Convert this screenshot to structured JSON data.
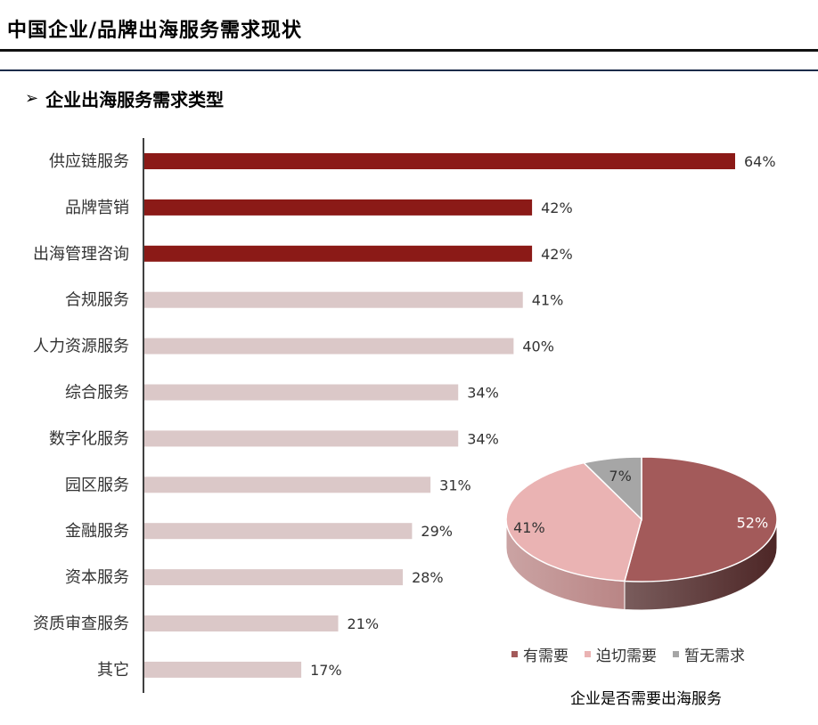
{
  "header": {
    "title": "中国企业/品牌出海服务需求现状",
    "section_arrow": "➢",
    "section_title": "企业出海服务需求类型"
  },
  "colors": {
    "bar_highlight": "#8b1a17",
    "bar_normal": "#dbc8c8",
    "pie_need": "#a35a5a",
    "pie_urgent": "#eab3b3",
    "pie_none": "#a6a6a6"
  },
  "chart_data": [
    {
      "type": "bar",
      "orientation": "horizontal",
      "categories": [
        "供应链服务",
        "品牌营销",
        "出海管理咨询",
        "合规服务",
        "人力资源服务",
        "综合服务",
        "数字化服务",
        "园区服务",
        "金融服务",
        "资本服务",
        "资质审查服务",
        "其它"
      ],
      "values": [
        64,
        42,
        42,
        41,
        40,
        34,
        34,
        31,
        29,
        28,
        21,
        17
      ],
      "value_labels": [
        "64%",
        "42%",
        "42%",
        "41%",
        "40%",
        "34%",
        "34%",
        "31%",
        "29%",
        "28%",
        "21%",
        "17%"
      ],
      "highlighted": [
        true,
        true,
        true,
        false,
        false,
        false,
        false,
        false,
        false,
        false,
        false,
        false
      ],
      "unit": "%",
      "xlim": [
        0,
        64
      ],
      "grid": false
    },
    {
      "type": "pie",
      "style": "3d",
      "title": "企业是否需要出海服务",
      "labels": [
        "有需要",
        "迫切需要",
        "暂无需求"
      ],
      "values": [
        52,
        41,
        7
      ],
      "value_labels": [
        "52%",
        "41%",
        "7%"
      ],
      "legend_position": "bottom"
    }
  ]
}
